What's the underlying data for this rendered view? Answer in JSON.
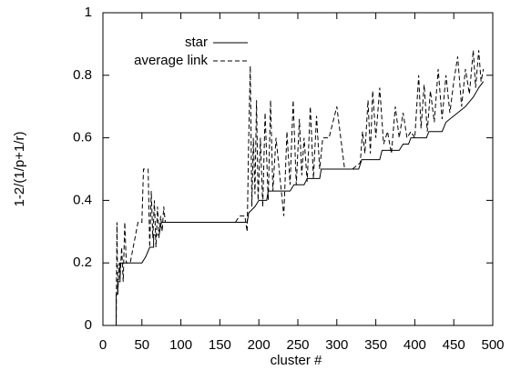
{
  "chart_data": {
    "type": "line",
    "xlabel": "cluster #",
    "ylabel": "1-2/(1/p+1/r)",
    "xlim": [
      0,
      500
    ],
    "xticks": [
      0,
      50,
      100,
      150,
      200,
      250,
      300,
      350,
      400,
      450,
      500
    ],
    "ylim": [
      0,
      1
    ],
    "yticks": [
      0,
      0.2,
      0.4,
      0.6,
      0.8,
      1
    ],
    "legend": "top-left",
    "grid": false,
    "series": [
      {
        "name": "star",
        "color": "#000000",
        "dash": "solid",
        "x": [
          17,
          17,
          19,
          19,
          22,
          22,
          30,
          50,
          55,
          60,
          65,
          65,
          72,
          75,
          185,
          187,
          195,
          200,
          210,
          212,
          240,
          245,
          258,
          262,
          278,
          280,
          328,
          332,
          355,
          358,
          380,
          385,
          392,
          395,
          415,
          418,
          435,
          440,
          450,
          465,
          475,
          482,
          488
        ],
        "values": [
          0,
          0.1,
          0.1,
          0.14,
          0.14,
          0.2,
          0.2,
          0.2,
          0.22,
          0.25,
          0.25,
          0.29,
          0.29,
          0.33,
          0.33,
          0.36,
          0.38,
          0.4,
          0.4,
          0.43,
          0.43,
          0.45,
          0.45,
          0.47,
          0.47,
          0.5,
          0.5,
          0.53,
          0.53,
          0.56,
          0.56,
          0.58,
          0.58,
          0.6,
          0.6,
          0.62,
          0.62,
          0.65,
          0.67,
          0.7,
          0.73,
          0.76,
          0.78
        ]
      },
      {
        "name": "average link",
        "color": "#000000",
        "dash": "dashed",
        "x": [
          17,
          18,
          19,
          21,
          22,
          24,
          26,
          28,
          30,
          35,
          45,
          50,
          52,
          58,
          60,
          62,
          64,
          66,
          68,
          70,
          72,
          74,
          76,
          78,
          80,
          170,
          175,
          182,
          185,
          187,
          189,
          191,
          193,
          195,
          197,
          199,
          202,
          205,
          208,
          212,
          215,
          218,
          222,
          228,
          232,
          236,
          240,
          244,
          248,
          252,
          255,
          258,
          262,
          266,
          270,
          274,
          278,
          282,
          290,
          300,
          305,
          310,
          320,
          330,
          333,
          336,
          340,
          343,
          346,
          350,
          355,
          360,
          365,
          370,
          375,
          380,
          385,
          390,
          395,
          400,
          405,
          408,
          412,
          416,
          420,
          425,
          430,
          435,
          440,
          445,
          450,
          455,
          460,
          465,
          470,
          475,
          478,
          482,
          485,
          488
        ],
        "values": [
          0,
          0.33,
          0.1,
          0.2,
          0.15,
          0.25,
          0.14,
          0.33,
          0.2,
          0.2,
          0.33,
          0.33,
          0.5,
          0.5,
          0.25,
          0.43,
          0.28,
          0.4,
          0.25,
          0.38,
          0.28,
          0.35,
          0.3,
          0.38,
          0.33,
          0.33,
          0.35,
          0.35,
          0.3,
          0.6,
          0.83,
          0.38,
          0.6,
          0.42,
          0.72,
          0.4,
          0.6,
          0.38,
          0.68,
          0.4,
          0.72,
          0.43,
          0.6,
          0.45,
          0.35,
          0.62,
          0.45,
          0.72,
          0.45,
          0.66,
          0.48,
          0.6,
          0.46,
          0.7,
          0.47,
          0.67,
          0.5,
          0.6,
          0.6,
          0.7,
          0.6,
          0.5,
          0.5,
          0.52,
          0.62,
          0.55,
          0.72,
          0.55,
          0.75,
          0.6,
          0.76,
          0.58,
          0.62,
          0.55,
          0.7,
          0.6,
          0.68,
          0.6,
          0.62,
          0.6,
          0.8,
          0.63,
          0.77,
          0.62,
          0.75,
          0.65,
          0.82,
          0.66,
          0.8,
          0.68,
          0.78,
          0.86,
          0.7,
          0.82,
          0.74,
          0.88,
          0.76,
          0.88,
          0.78,
          0.82
        ]
      }
    ]
  }
}
